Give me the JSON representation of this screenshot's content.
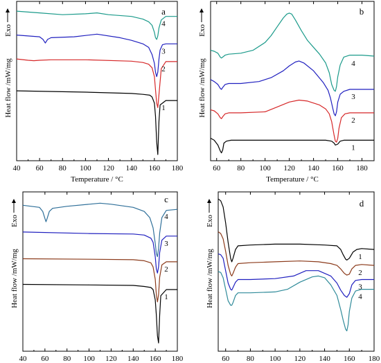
{
  "figure": {
    "panels": [
      "a",
      "b",
      "c",
      "d"
    ]
  },
  "chart_data": [
    {
      "panel": "a",
      "type": "line",
      "xlabel": "Temperature / °C",
      "ylabel": "Heat flow /mW/mg",
      "exo_label": "Exo",
      "xlim": [
        40,
        180
      ],
      "xticks": [
        40,
        60,
        80,
        100,
        120,
        140,
        160,
        180
      ],
      "grid": false,
      "series": [
        {
          "name": "1",
          "color": "#000000",
          "x": [
            40,
            100,
            140,
            150,
            156,
            158,
            160,
            161,
            162,
            163,
            164,
            165,
            170,
            180
          ],
          "y": [
            0.24,
            0.225,
            0.21,
            0.2,
            0.19,
            0.17,
            0.1,
            -0.05,
            -0.34,
            -0.48,
            -0.1,
            0.08,
            0.13,
            0.13
          ]
        },
        {
          "name": "2",
          "color": "#d62728",
          "x": [
            40,
            50,
            55,
            60,
            70,
            100,
            140,
            150,
            155,
            158,
            160,
            161,
            162,
            163,
            164,
            166,
            170,
            180
          ],
          "y": [
            0.6,
            0.585,
            0.58,
            0.585,
            0.59,
            0.59,
            0.575,
            0.56,
            0.54,
            0.5,
            0.4,
            0.25,
            0.1,
            0.05,
            0.2,
            0.49,
            0.57,
            0.57
          ]
        },
        {
          "name": "3",
          "color": "#1f1fbf",
          "x": [
            40,
            60,
            63,
            65,
            67,
            70,
            90,
            110,
            130,
            140,
            150,
            155,
            158,
            160,
            161,
            162,
            163,
            164,
            165,
            167,
            170,
            180
          ],
          "y": [
            0.87,
            0.85,
            0.82,
            0.78,
            0.82,
            0.84,
            0.85,
            0.88,
            0.84,
            0.81,
            0.77,
            0.73,
            0.65,
            0.55,
            0.45,
            0.4,
            0.45,
            0.6,
            0.7,
            0.76,
            0.77,
            0.77
          ]
        },
        {
          "name": "4",
          "color": "#1a9a8a",
          "x": [
            40,
            60,
            80,
            100,
            110,
            120,
            140,
            150,
            155,
            158,
            160,
            161,
            162,
            163,
            164,
            166,
            170,
            180
          ],
          "y": [
            1.14,
            1.12,
            1.1,
            1.11,
            1.12,
            1.1,
            1.08,
            1.05,
            1.02,
            0.98,
            0.9,
            0.84,
            0.82,
            0.86,
            0.95,
            1.04,
            1.08,
            1.08
          ]
        }
      ]
    },
    {
      "panel": "b",
      "type": "line",
      "xlabel": "Temperature / °C",
      "ylabel": "Heat flow /mW/mg",
      "exo_label": "Exo",
      "xlim": [
        55,
        190
      ],
      "xticks": [
        60,
        80,
        100,
        120,
        140,
        160,
        180
      ],
      "grid": false,
      "series": [
        {
          "name": "1",
          "color": "#000000",
          "x": [
            55,
            58,
            61,
            63,
            64,
            65,
            66,
            68,
            72,
            80,
            100,
            140,
            150,
            155,
            157,
            158,
            160,
            162,
            165,
            170,
            180,
            190
          ],
          "y": [
            0.05,
            0.03,
            -0.02,
            -0.08,
            -0.1,
            -0.07,
            0.0,
            0.02,
            0.03,
            0.03,
            0.03,
            0.03,
            0.03,
            0.02,
            0.0,
            -0.02,
            -0.01,
            0.02,
            0.03,
            0.03,
            0.03,
            0.03
          ]
        },
        {
          "name": "2",
          "color": "#d62728",
          "x": [
            55,
            58,
            61,
            63,
            64,
            65,
            67,
            70,
            80,
            100,
            110,
            120,
            128,
            135,
            145,
            150,
            153,
            155,
            157,
            158,
            159,
            160,
            161,
            163,
            166,
            170,
            180,
            190
          ],
          "y": [
            0.34,
            0.33,
            0.3,
            0.26,
            0.25,
            0.27,
            0.3,
            0.31,
            0.31,
            0.32,
            0.37,
            0.42,
            0.44,
            0.43,
            0.39,
            0.35,
            0.3,
            0.22,
            0.08,
            0.02,
            0.01,
            0.05,
            0.15,
            0.26,
            0.3,
            0.31,
            0.31,
            0.31
          ]
        },
        {
          "name": "3",
          "color": "#1f1fbf",
          "x": [
            55,
            58,
            61,
            63,
            64,
            65,
            67,
            70,
            80,
            95,
            105,
            115,
            120,
            125,
            128,
            132,
            140,
            148,
            152,
            154,
            156,
            157,
            158,
            159,
            160,
            162,
            165,
            170,
            180,
            190
          ],
          "y": [
            0.65,
            0.63,
            0.6,
            0.56,
            0.55,
            0.57,
            0.6,
            0.61,
            0.61,
            0.63,
            0.67,
            0.74,
            0.79,
            0.83,
            0.84,
            0.82,
            0.74,
            0.62,
            0.54,
            0.46,
            0.35,
            0.3,
            0.28,
            0.32,
            0.42,
            0.5,
            0.53,
            0.55,
            0.55,
            0.55
          ]
        },
        {
          "name": "4",
          "color": "#1a9a8a",
          "x": [
            55,
            58,
            61,
            63,
            64,
            65,
            67,
            70,
            80,
            90,
            100,
            105,
            110,
            115,
            118,
            120,
            122,
            125,
            130,
            135,
            140,
            145,
            150,
            153,
            155,
            157,
            158,
            159,
            160,
            162,
            165,
            170,
            180,
            190
          ],
          "y": [
            0.95,
            0.94,
            0.92,
            0.88,
            0.87,
            0.88,
            0.9,
            0.91,
            0.92,
            0.95,
            1.03,
            1.1,
            1.19,
            1.28,
            1.32,
            1.33,
            1.32,
            1.26,
            1.15,
            1.05,
            0.98,
            0.91,
            0.82,
            0.72,
            0.6,
            0.54,
            0.53,
            0.58,
            0.68,
            0.8,
            0.88,
            0.9,
            0.9,
            0.89
          ]
        }
      ]
    },
    {
      "panel": "c",
      "type": "line",
      "xlabel": "Temperature / °C",
      "ylabel": "Heat flow /mW/mg",
      "exo_label": "Exo",
      "xlim": [
        40,
        180
      ],
      "xticks": [
        40,
        60,
        80,
        100,
        120,
        140,
        160,
        180
      ],
      "grid": false,
      "series": [
        {
          "name": "1",
          "color": "#000000",
          "x": [
            40,
            100,
            140,
            150,
            156,
            158,
            160,
            161,
            162,
            163,
            164,
            165,
            170,
            180
          ],
          "y": [
            0.35,
            0.345,
            0.34,
            0.33,
            0.32,
            0.3,
            0.2,
            0.05,
            -0.15,
            -0.22,
            0.05,
            0.24,
            0.3,
            0.3
          ]
        },
        {
          "name": "2",
          "color": "#8b3a1a",
          "x": [
            40,
            100,
            140,
            150,
            156,
            158,
            160,
            161,
            162,
            163,
            164,
            166,
            170,
            180
          ],
          "y": [
            0.6,
            0.595,
            0.59,
            0.58,
            0.56,
            0.52,
            0.4,
            0.25,
            0.18,
            0.25,
            0.42,
            0.54,
            0.57,
            0.57
          ]
        },
        {
          "name": "3",
          "color": "#1f1fbf",
          "x": [
            40,
            100,
            140,
            150,
            156,
            158,
            160,
            161,
            162,
            163,
            164,
            166,
            170,
            180
          ],
          "y": [
            0.86,
            0.845,
            0.84,
            0.83,
            0.8,
            0.76,
            0.62,
            0.5,
            0.46,
            0.52,
            0.66,
            0.78,
            0.82,
            0.82
          ]
        },
        {
          "name": "4",
          "color": "#2e6f99",
          "x": [
            40,
            55,
            58,
            60,
            61,
            62,
            64,
            67,
            80,
            100,
            110,
            120,
            140,
            150,
            155,
            158,
            160,
            161,
            162,
            163,
            164,
            166,
            170,
            180
          ],
          "y": [
            1.12,
            1.1,
            1.06,
            0.99,
            0.96,
            0.99,
            1.06,
            1.09,
            1.11,
            1.13,
            1.14,
            1.13,
            1.1,
            1.06,
            1.0,
            0.9,
            0.75,
            0.65,
            0.62,
            0.7,
            0.85,
            1.0,
            1.07,
            1.08
          ]
        }
      ]
    },
    {
      "panel": "d",
      "type": "line",
      "xlabel": "Temperature / °C",
      "ylabel": "Heat flow /mW/mg",
      "exo_label": "Exo",
      "xlim": [
        54,
        180
      ],
      "xticks": [
        60,
        80,
        100,
        120,
        140,
        160,
        180
      ],
      "grid": false,
      "series": [
        {
          "name": "1",
          "color": "#000000",
          "x": [
            54,
            56,
            58,
            60,
            62,
            64,
            65,
            66,
            68,
            70,
            80,
            100,
            120,
            140,
            150,
            153,
            155,
            157,
            158,
            160,
            163,
            166,
            170,
            180
          ],
          "y": [
            1.47,
            1.45,
            1.38,
            1.2,
            0.98,
            0.8,
            0.76,
            0.8,
            0.9,
            0.94,
            0.95,
            0.96,
            0.96,
            0.95,
            0.94,
            0.9,
            0.84,
            0.79,
            0.78,
            0.8,
            0.87,
            0.9,
            0.91,
            0.9
          ]
        },
        {
          "name": "2",
          "color": "#8b3a1a",
          "x": [
            54,
            56,
            58,
            60,
            62,
            64,
            65,
            66,
            68,
            70,
            80,
            100,
            120,
            135,
            145,
            150,
            153,
            156,
            158,
            160,
            162,
            165,
            170,
            180
          ],
          "y": [
            1.1,
            1.08,
            1.02,
            0.88,
            0.72,
            0.62,
            0.6,
            0.63,
            0.7,
            0.74,
            0.75,
            0.76,
            0.77,
            0.76,
            0.74,
            0.72,
            0.68,
            0.63,
            0.61,
            0.62,
            0.68,
            0.72,
            0.73,
            0.72
          ]
        },
        {
          "name": "3",
          "color": "#1f1fbf",
          "x": [
            54,
            56,
            58,
            60,
            62,
            64,
            65,
            66,
            68,
            70,
            80,
            100,
            115,
            125,
            135,
            145,
            150,
            153,
            156,
            158,
            160,
            162,
            165,
            170,
            180
          ],
          "y": [
            0.85,
            0.84,
            0.8,
            0.66,
            0.52,
            0.45,
            0.44,
            0.47,
            0.53,
            0.56,
            0.56,
            0.57,
            0.6,
            0.66,
            0.66,
            0.6,
            0.52,
            0.44,
            0.38,
            0.36,
            0.4,
            0.5,
            0.55,
            0.56,
            0.56
          ]
        },
        {
          "name": "4",
          "color": "#2e8a99",
          "x": [
            54,
            56,
            58,
            60,
            62,
            64,
            65,
            66,
            68,
            70,
            80,
            100,
            110,
            120,
            130,
            135,
            140,
            145,
            150,
            153,
            155,
            157,
            158,
            159,
            160,
            162,
            165,
            170,
            180
          ],
          "y": [
            0.65,
            0.64,
            0.58,
            0.45,
            0.32,
            0.27,
            0.27,
            0.3,
            0.38,
            0.41,
            0.41,
            0.42,
            0.45,
            0.53,
            0.59,
            0.6,
            0.58,
            0.5,
            0.38,
            0.22,
            0.1,
            0.0,
            -0.02,
            0.05,
            0.2,
            0.35,
            0.43,
            0.45,
            0.45
          ]
        }
      ]
    }
  ]
}
